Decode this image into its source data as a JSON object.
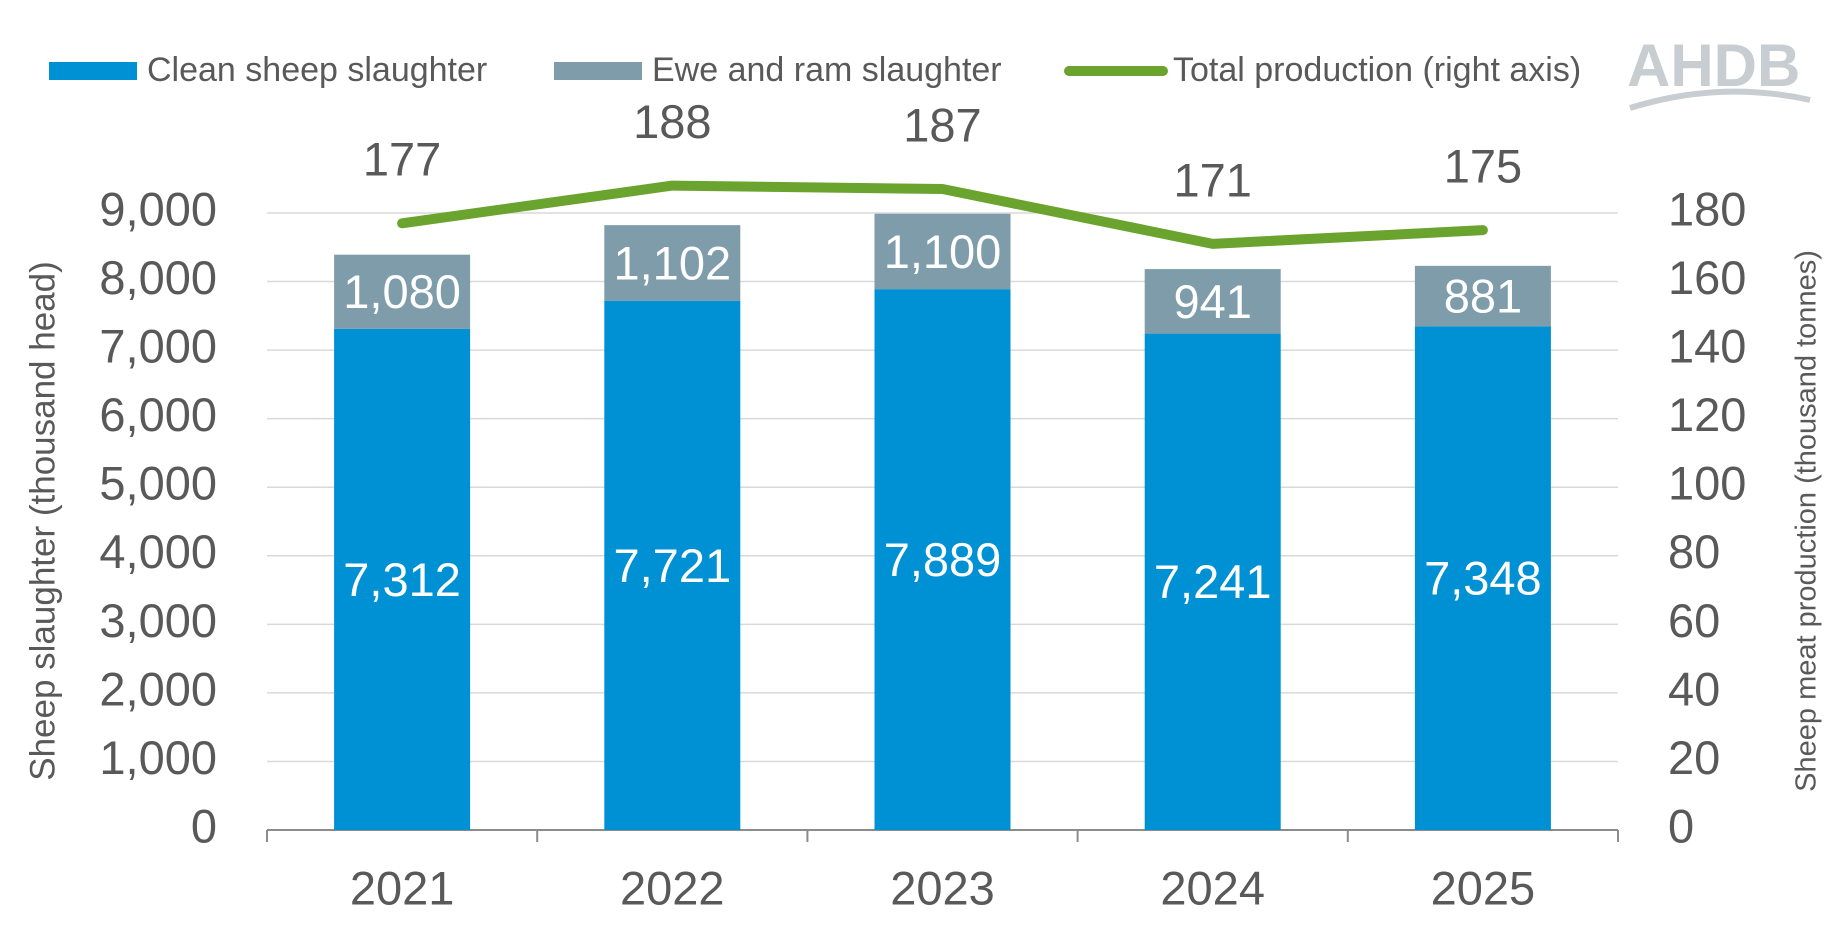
{
  "logo": "AHDB",
  "chart_data": {
    "type": "bar",
    "stacked": true,
    "categories": [
      "2021",
      "2022",
      "2023",
      "2024",
      "2025"
    ],
    "y_label": "Sheep slaughter (thousand head)",
    "y2_label": "Sheep meat production (thousand tonnes)",
    "ylim": [
      0,
      9000
    ],
    "yticks": [
      0,
      {
        "value": 1000,
        "label": "1,000"
      },
      {
        "value": 2000,
        "label": "2,000"
      },
      {
        "value": 3000,
        "label": "3,000"
      },
      {
        "value": 4000,
        "label": "4,000"
      },
      {
        "value": 5000,
        "label": "5,000"
      },
      {
        "value": 6000,
        "label": "6,000"
      },
      {
        "value": 7000,
        "label": "7,000"
      },
      {
        "value": 8000,
        "label": "8,000"
      },
      {
        "value": 9000,
        "label": "9,000"
      }
    ],
    "y2lim": [
      0,
      180
    ],
    "y2ticks": [
      0,
      20,
      40,
      60,
      80,
      100,
      120,
      140,
      160,
      180
    ],
    "grid": true,
    "legend": "top",
    "series": [
      {
        "name": "Clean sheep slaughter",
        "color": "#0090d4",
        "values": [
          7312,
          7721,
          7889,
          7241,
          7348
        ],
        "value_labels": [
          "7,312",
          "7,721",
          "7,889",
          "7,241",
          "7,348"
        ]
      },
      {
        "name": "Ewe and ram slaughter",
        "color": "#7f9cab",
        "values": [
          1080,
          1102,
          1100,
          941,
          881
        ],
        "value_labels": [
          "1,080",
          "1,102",
          "1,100",
          "941",
          "881"
        ]
      },
      {
        "name": "Total production (right axis)",
        "color": "#6aa42f",
        "type": "line",
        "axis": "y2",
        "values": [
          177,
          188,
          187,
          171,
          175
        ]
      }
    ]
  }
}
